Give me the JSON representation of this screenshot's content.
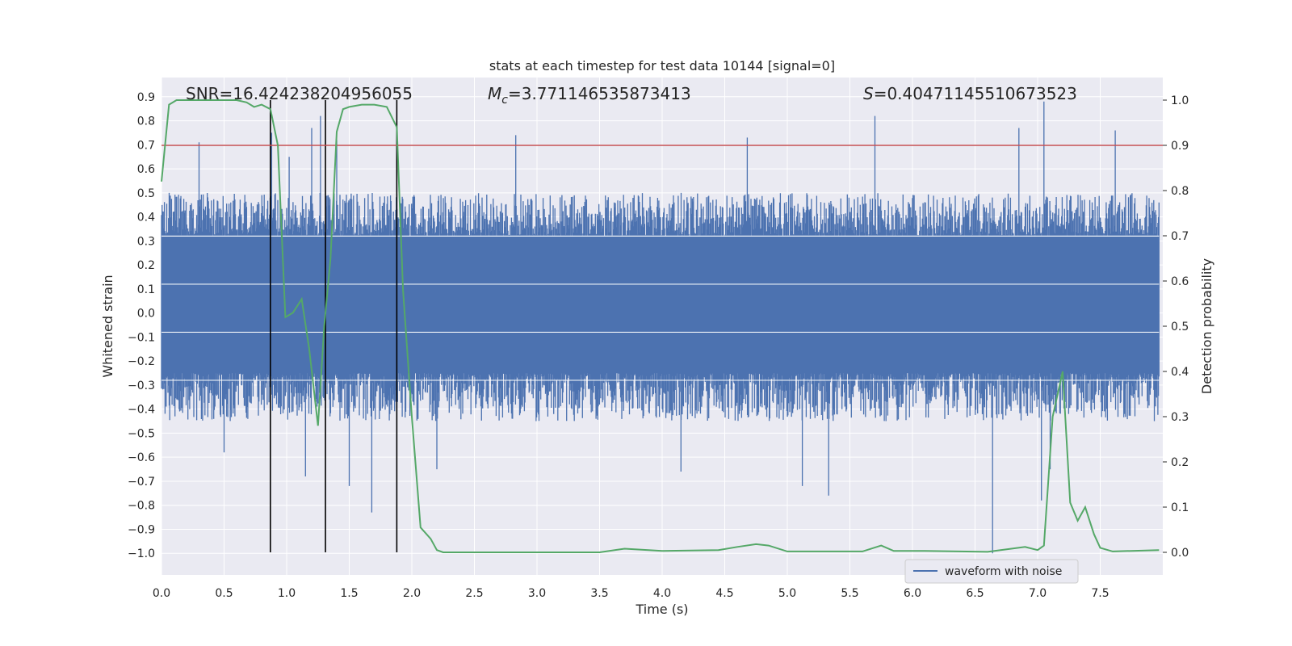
{
  "chart_data": {
    "type": "line",
    "title": "stats at each timestep for test data 10144 [signal=0]",
    "xlabel": "Time (s)",
    "ylabel_left": "Whitened strain",
    "ylabel_right": "Detection probability",
    "xlim": [
      0.0,
      8.0
    ],
    "ylim_left": [
      -1.09,
      0.98
    ],
    "ylim_right": [
      -0.05,
      1.05
    ],
    "x_ticks": [
      "0.0",
      "0.5",
      "1.0",
      "1.5",
      "2.0",
      "2.5",
      "3.0",
      "3.5",
      "4.0",
      "4.5",
      "5.0",
      "5.5",
      "6.0",
      "6.5",
      "7.0",
      "7.5"
    ],
    "y_left_ticks": [
      "0.9",
      "0.8",
      "0.7",
      "0.6",
      "0.5",
      "0.4",
      "0.3",
      "0.2",
      "0.1",
      "0.0",
      "-0.1",
      "-0.2",
      "-0.3",
      "-0.4",
      "-0.5",
      "-0.6",
      "-0.7",
      "-0.8",
      "-0.9",
      "-1.0"
    ],
    "y_right_ticks": [
      "1.0",
      "0.9",
      "0.8",
      "0.7",
      "0.6",
      "0.5",
      "0.4",
      "0.3",
      "0.2",
      "0.1",
      "0.0"
    ],
    "grid": true,
    "legend": {
      "entries": [
        "waveform with noise"
      ],
      "placement": "lower right"
    },
    "annotations": {
      "snr_prefix": "SNR=",
      "snr_value": "16.424238204956055",
      "mc_symbol": "M",
      "mc_subscript": "c",
      "mc_value": "=3.771146535873413",
      "s_symbol": "S",
      "s_value": "=0.40471145510673523"
    },
    "threshold": {
      "axis": "right",
      "value": 0.9,
      "color": "#c44e52"
    },
    "vertical_markers": {
      "x": [
        0.87,
        1.31,
        1.88
      ],
      "color": "#000000"
    },
    "colors": {
      "waveform": "#4c72b0",
      "probability": "#55a868",
      "plot_bg": "#eaeaf2",
      "grid": "#ffffff"
    },
    "series": [
      {
        "name": "waveform with noise",
        "axis": "left",
        "kind": "noise_band",
        "t_range": [
          0.0,
          7.97
        ],
        "core_range": [
          -0.25,
          0.32
        ],
        "typical_envelope": [
          -0.45,
          0.5
        ],
        "extremes": [
          {
            "x": 0.3,
            "y": 0.71
          },
          {
            "x": 0.88,
            "y": 0.75
          },
          {
            "x": 1.02,
            "y": 0.65
          },
          {
            "x": 1.2,
            "y": 0.77
          },
          {
            "x": 1.27,
            "y": 0.82
          },
          {
            "x": 1.4,
            "y": 0.72
          },
          {
            "x": 2.83,
            "y": 0.74
          },
          {
            "x": 4.68,
            "y": 0.73
          },
          {
            "x": 5.7,
            "y": 0.82
          },
          {
            "x": 6.85,
            "y": 0.77
          },
          {
            "x": 7.05,
            "y": 0.88
          },
          {
            "x": 7.62,
            "y": 0.76
          },
          {
            "x": 0.5,
            "y": -0.58
          },
          {
            "x": 1.15,
            "y": -0.68
          },
          {
            "x": 1.5,
            "y": -0.72
          },
          {
            "x": 1.68,
            "y": -0.83
          },
          {
            "x": 2.2,
            "y": -0.65
          },
          {
            "x": 4.15,
            "y": -0.66
          },
          {
            "x": 5.12,
            "y": -0.72
          },
          {
            "x": 5.33,
            "y": -0.76
          },
          {
            "x": 6.64,
            "y": -1.0
          },
          {
            "x": 7.03,
            "y": -0.78
          },
          {
            "x": 7.1,
            "y": -0.65
          }
        ]
      },
      {
        "name": "",
        "axis": "right",
        "kind": "line",
        "points": [
          [
            0.0,
            0.82
          ],
          [
            0.06,
            0.99
          ],
          [
            0.12,
            1.0
          ],
          [
            0.6,
            1.0
          ],
          [
            0.68,
            0.995
          ],
          [
            0.74,
            0.985
          ],
          [
            0.8,
            0.99
          ],
          [
            0.87,
            0.98
          ],
          [
            0.93,
            0.9
          ],
          [
            0.99,
            0.52
          ],
          [
            1.05,
            0.53
          ],
          [
            1.12,
            0.56
          ],
          [
            1.18,
            0.45
          ],
          [
            1.25,
            0.28
          ],
          [
            1.3,
            0.5
          ],
          [
            1.35,
            0.65
          ],
          [
            1.4,
            0.93
          ],
          [
            1.45,
            0.98
          ],
          [
            1.5,
            0.985
          ],
          [
            1.6,
            0.99
          ],
          [
            1.7,
            0.99
          ],
          [
            1.8,
            0.985
          ],
          [
            1.88,
            0.94
          ],
          [
            1.93,
            0.58
          ],
          [
            2.0,
            0.3
          ],
          [
            2.07,
            0.055
          ],
          [
            2.15,
            0.03
          ],
          [
            2.2,
            0.005
          ],
          [
            2.25,
            0.0
          ],
          [
            2.6,
            0.0
          ],
          [
            3.0,
            0.0
          ],
          [
            3.5,
            0.0
          ],
          [
            3.7,
            0.008
          ],
          [
            4.0,
            0.003
          ],
          [
            4.45,
            0.005
          ],
          [
            4.6,
            0.012
          ],
          [
            4.75,
            0.018
          ],
          [
            4.85,
            0.015
          ],
          [
            5.0,
            0.002
          ],
          [
            5.6,
            0.002
          ],
          [
            5.75,
            0.015
          ],
          [
            5.85,
            0.003
          ],
          [
            6.1,
            0.003
          ],
          [
            6.6,
            0.001
          ],
          [
            6.9,
            0.012
          ],
          [
            7.0,
            0.005
          ],
          [
            7.05,
            0.015
          ],
          [
            7.12,
            0.3
          ],
          [
            7.2,
            0.4
          ],
          [
            7.26,
            0.11
          ],
          [
            7.32,
            0.07
          ],
          [
            7.38,
            0.1
          ],
          [
            7.45,
            0.04
          ],
          [
            7.5,
            0.01
          ],
          [
            7.6,
            0.002
          ],
          [
            7.97,
            0.005
          ]
        ]
      }
    ]
  }
}
